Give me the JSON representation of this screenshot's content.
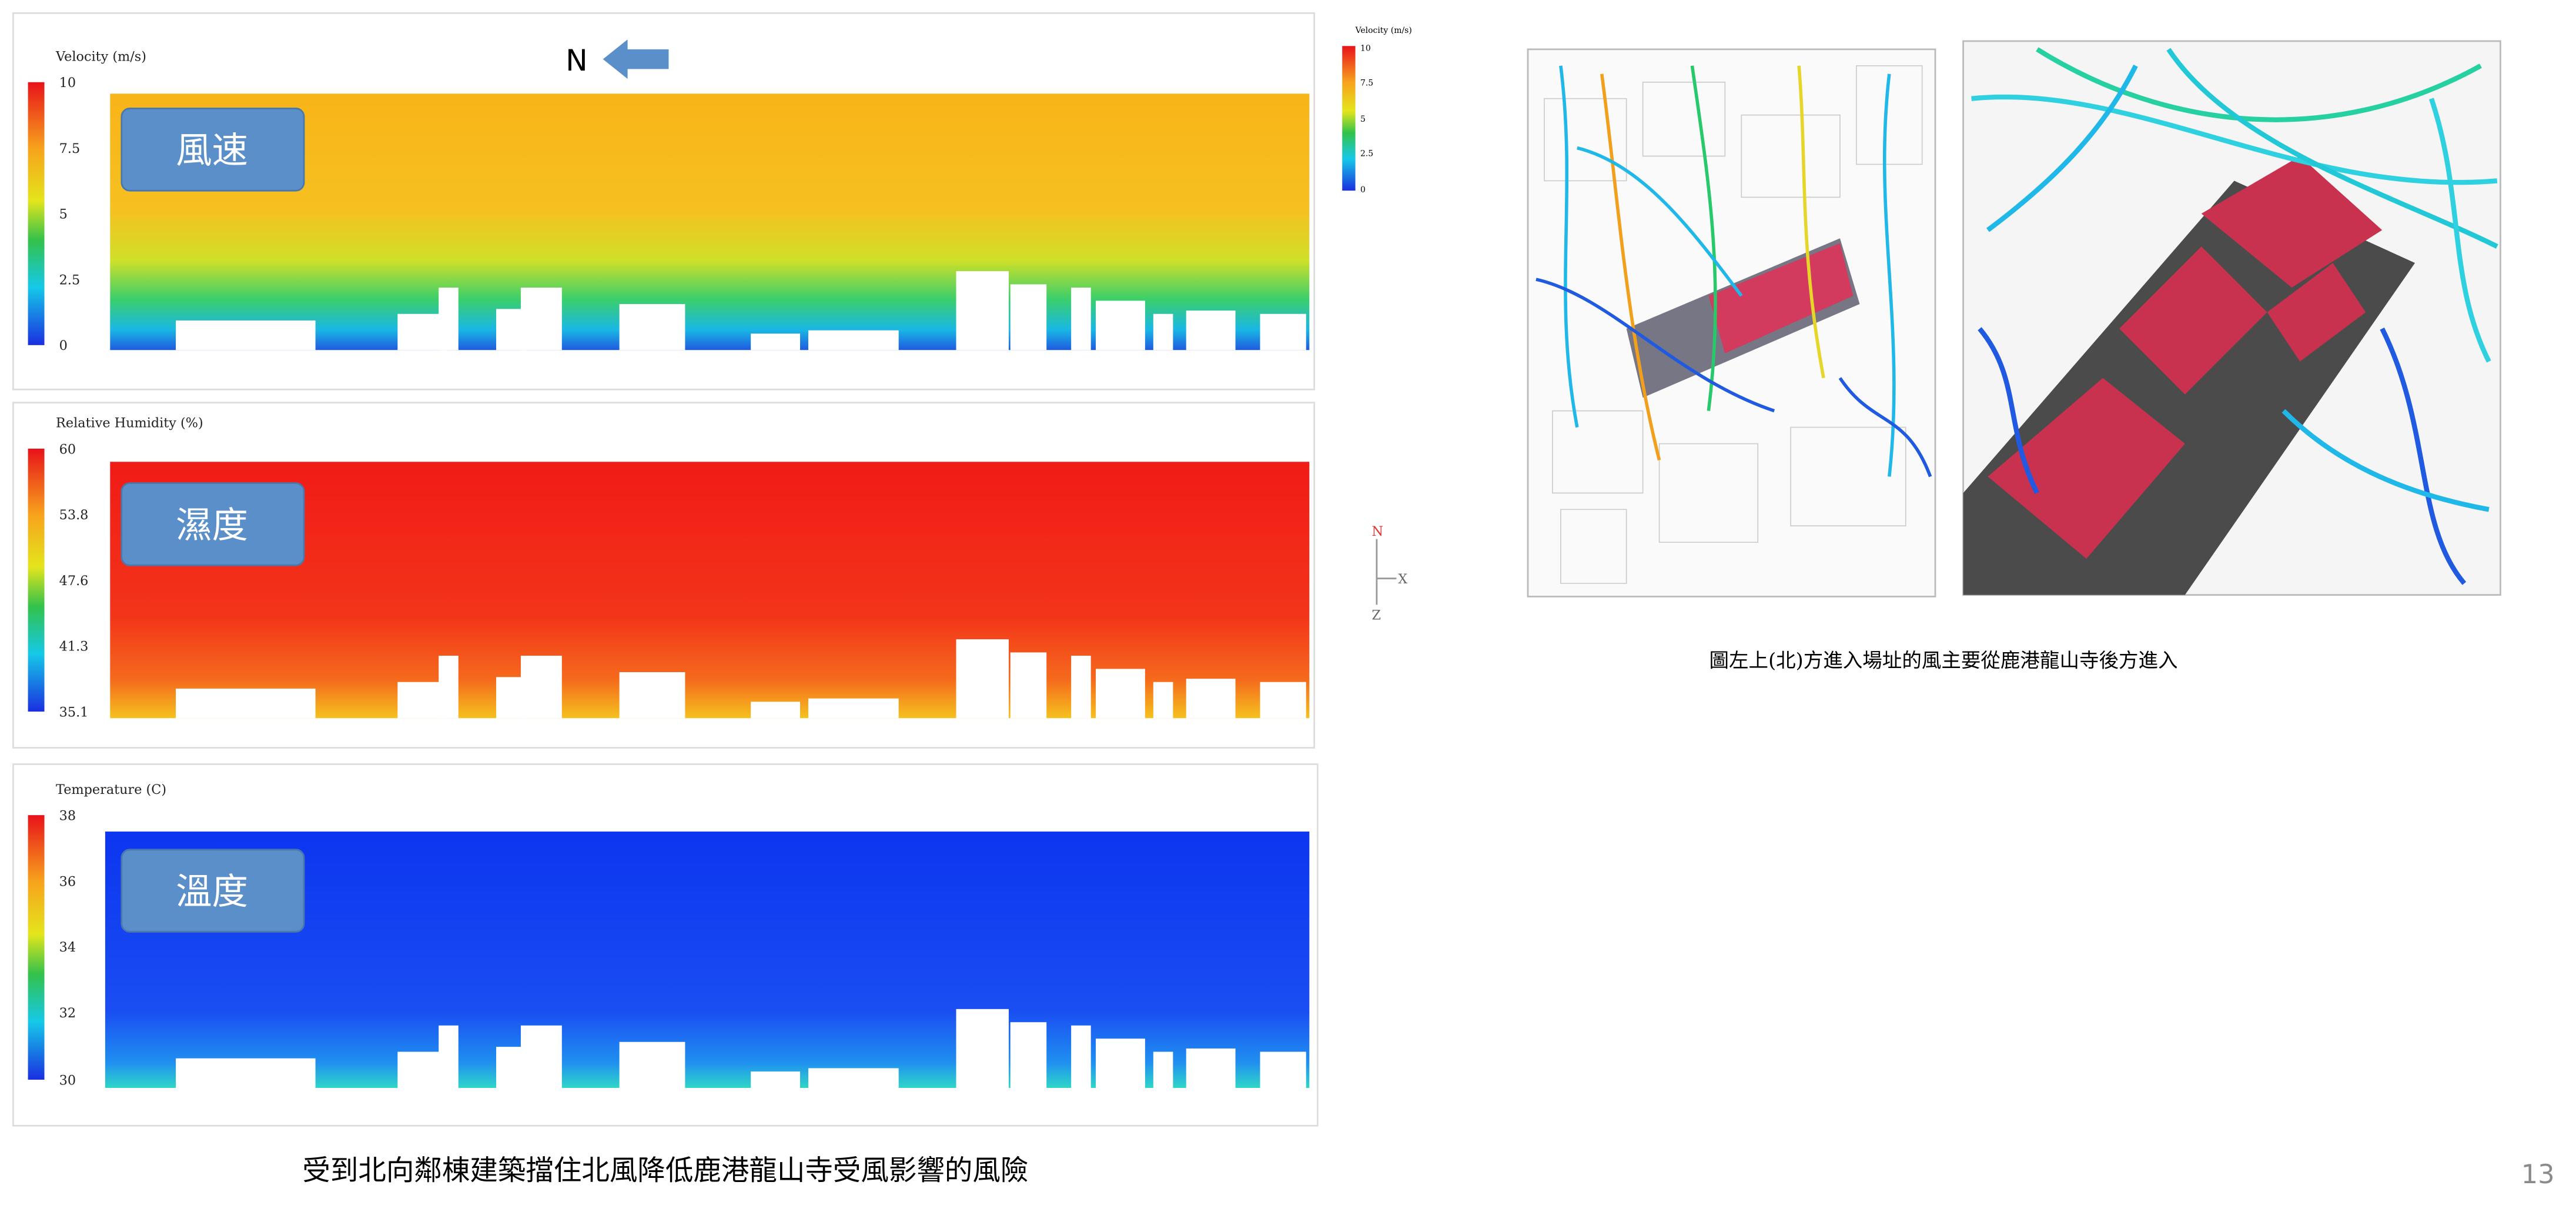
{
  "left_panels": [
    {
      "legend_title": "Velocity (m/s)",
      "ticks": [
        "10",
        "7.5",
        "5",
        "2.5",
        "0"
      ],
      "label": "風速"
    },
    {
      "legend_title": "Relative Humidity (%)",
      "ticks": [
        "60",
        "53.8",
        "47.6",
        "41.3",
        "35.1"
      ],
      "label": "濕度"
    },
    {
      "legend_title": "Temperature (C)",
      "ticks": [
        "38",
        "36",
        "34",
        "32",
        "30"
      ],
      "label": "溫度"
    }
  ],
  "compass": "N",
  "side_legend": {
    "title": "Velocity (m/s)",
    "ticks": [
      "10",
      "7.5",
      "5",
      "2.5",
      "0"
    ]
  },
  "axis_labels": {
    "north": "N",
    "x": "X",
    "z": "Z"
  },
  "left_caption": "受到北向鄰棟建築擋住北風降低鹿港龍山寺受風影響的風險",
  "right_caption": "圖左上(北)方進入場址的風主要從鹿港龍山寺後方進入",
  "page_number": "13"
}
